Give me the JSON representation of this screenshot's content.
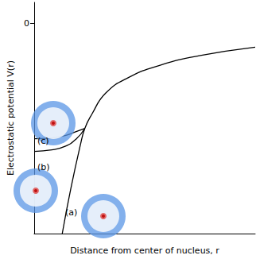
{
  "chart_data": {
    "type": "line",
    "x_label": "Distance from center of nucleus, r",
    "y_label": "Electrostatic potential V(r)",
    "xlim": [
      0,
      10
    ],
    "ylim": [
      -10,
      1
    ],
    "yticks": [
      0
    ],
    "tick_labels": "y",
    "grid": false,
    "series": [
      {
        "name": "(a)",
        "color": "#000000",
        "x": [
          1.27,
          1.65,
          2.08,
          2.29,
          2.61,
          3.24,
          4.3,
          5.7,
          7.46,
          10
        ],
        "values": [
          -10,
          -7.9,
          -5.83,
          -5.0,
          -4.32,
          -3.31,
          -2.56,
          -1.99,
          -1.54,
          -1.13
        ]
      },
      {
        "name": "(b)",
        "color": "#000000",
        "x": [
          0,
          0.8,
          1.4,
          1.9,
          2.29
        ],
        "values": [
          -6.09,
          -6.02,
          -5.85,
          -5.5,
          -5.0
        ]
      },
      {
        "name": "(c)",
        "color": "#000000",
        "x": [
          0,
          0.8,
          1.4,
          1.9,
          2.29
        ],
        "values": [
          -5.49,
          -5.45,
          -5.34,
          -5.15,
          -5.0
        ]
      }
    ]
  }
}
